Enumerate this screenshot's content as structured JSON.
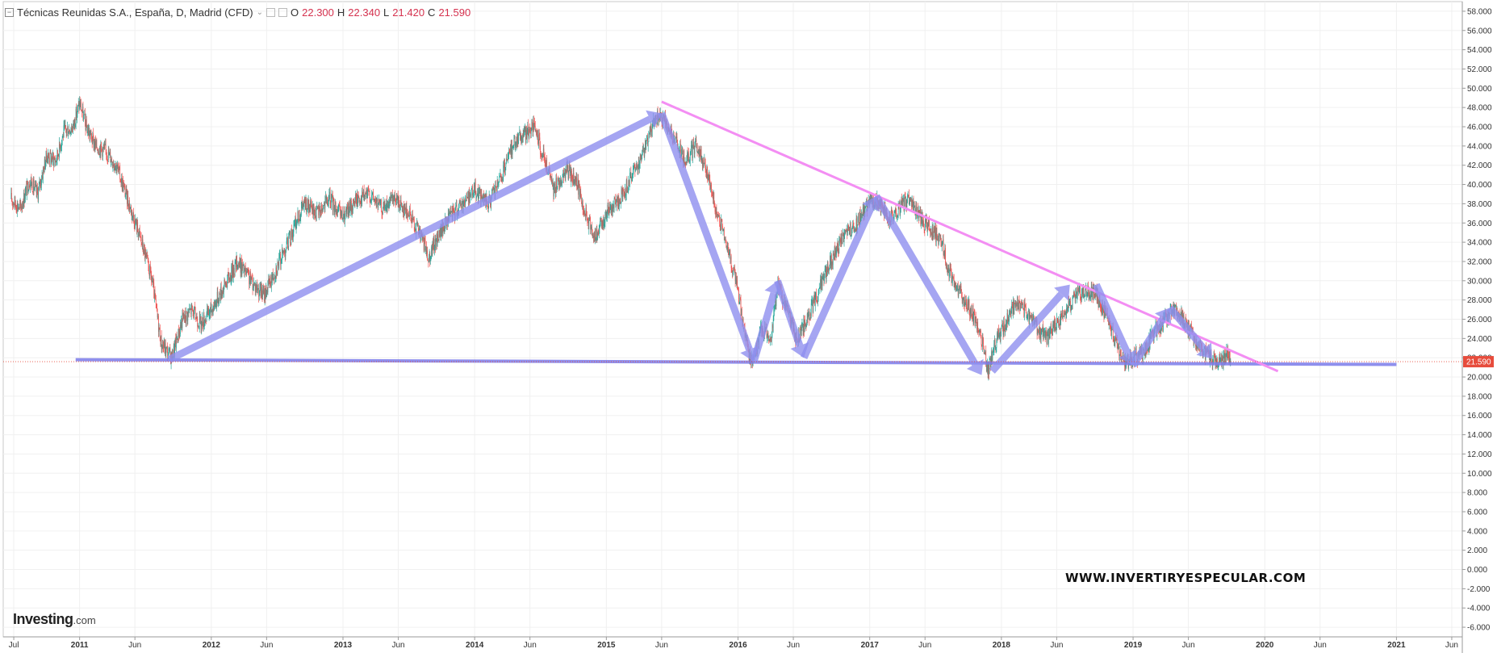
{
  "header": {
    "symbol_title": "Técnicas Reunidas S.A., España, D, Madrid (CFD)",
    "open_label": "O",
    "open_value": "22.300",
    "high_label": "H",
    "high_value": "22.340",
    "low_label": "L",
    "low_value": "21.420",
    "close_label": "C",
    "close_value": "21.590"
  },
  "watermark": "WWW.INVERTIRYESPECULAR.COM",
  "brand": {
    "name": "Investing",
    "suffix": ".com"
  },
  "colors": {
    "up": "#26a69a",
    "down": "#ef5350",
    "arrow": "#8f8fef",
    "resistance": "#f38ef3",
    "support": "#7b7bea",
    "price_tag": "#e74c3c"
  },
  "chart_data": {
    "type": "candlestick",
    "title": "Técnicas Reunidas S.A., España, D, Madrid (CFD)",
    "x_range": [
      2010.42,
      2021.5
    ],
    "y_range": [
      -7.0,
      59.0
    ],
    "y_ticks": [
      "58.000",
      "56.000",
      "54.000",
      "52.000",
      "50.000",
      "48.000",
      "46.000",
      "44.000",
      "42.000",
      "40.000",
      "38.000",
      "36.000",
      "34.000",
      "32.000",
      "30.000",
      "28.000",
      "26.000",
      "24.000",
      "22.000",
      "20.000",
      "18.000",
      "16.000",
      "14.000",
      "12.000",
      "10.000",
      "8.000",
      "6.000",
      "4.000",
      "2.000",
      "0.000",
      "-2.000",
      "-4.000",
      "-6.000"
    ],
    "x_ticks": [
      {
        "label": "Jul",
        "t": 2010.5
      },
      {
        "label": "2011",
        "t": 2011.0
      },
      {
        "label": "Jun",
        "t": 2011.42
      },
      {
        "label": "2012",
        "t": 2012.0
      },
      {
        "label": "Jun",
        "t": 2012.42
      },
      {
        "label": "2013",
        "t": 2013.0
      },
      {
        "label": "Jun",
        "t": 2013.42
      },
      {
        "label": "2014",
        "t": 2014.0
      },
      {
        "label": "Jun",
        "t": 2014.42
      },
      {
        "label": "2015",
        "t": 2015.0
      },
      {
        "label": "Jun",
        "t": 2015.42
      },
      {
        "label": "2016",
        "t": 2016.0
      },
      {
        "label": "Jun",
        "t": 2016.42
      },
      {
        "label": "2017",
        "t": 2017.0
      },
      {
        "label": "Jun",
        "t": 2017.42
      },
      {
        "label": "2018",
        "t": 2018.0
      },
      {
        "label": "Jun",
        "t": 2018.42
      },
      {
        "label": "2019",
        "t": 2019.0
      },
      {
        "label": "Jun",
        "t": 2019.42
      },
      {
        "label": "2020",
        "t": 2020.0
      },
      {
        "label": "Jun",
        "t": 2020.42
      },
      {
        "label": "2021",
        "t": 2021.0
      },
      {
        "label": "Jun",
        "t": 2021.42
      }
    ],
    "price_path": [
      [
        2010.48,
        38.5
      ],
      [
        2010.55,
        37.5
      ],
      [
        2010.62,
        40.5
      ],
      [
        2010.68,
        39.0
      ],
      [
        2010.75,
        43.0
      ],
      [
        2010.82,
        42.5
      ],
      [
        2010.88,
        45.5
      ],
      [
        2010.95,
        46.0
      ],
      [
        2011.0,
        48.5
      ],
      [
        2011.05,
        46.0
      ],
      [
        2011.12,
        44.0
      ],
      [
        2011.2,
        43.5
      ],
      [
        2011.28,
        42.0
      ],
      [
        2011.35,
        39.0
      ],
      [
        2011.45,
        35.0
      ],
      [
        2011.55,
        30.0
      ],
      [
        2011.62,
        23.5
      ],
      [
        2011.7,
        22.0
      ],
      [
        2011.78,
        26.0
      ],
      [
        2011.85,
        27.0
      ],
      [
        2011.92,
        25.5
      ],
      [
        2012.0,
        27.0
      ],
      [
        2012.1,
        29.5
      ],
      [
        2012.2,
        32.0
      ],
      [
        2012.3,
        30.0
      ],
      [
        2012.4,
        28.5
      ],
      [
        2012.5,
        31.5
      ],
      [
        2012.6,
        34.5
      ],
      [
        2012.7,
        38.0
      ],
      [
        2012.8,
        37.0
      ],
      [
        2012.9,
        38.5
      ],
      [
        2013.0,
        36.5
      ],
      [
        2013.1,
        38.5
      ],
      [
        2013.2,
        39.0
      ],
      [
        2013.3,
        37.5
      ],
      [
        2013.4,
        38.5
      ],
      [
        2013.5,
        37.0
      ],
      [
        2013.58,
        35.0
      ],
      [
        2013.65,
        32.5
      ],
      [
        2013.72,
        34.5
      ],
      [
        2013.8,
        36.5
      ],
      [
        2013.9,
        38.0
      ],
      [
        2014.0,
        39.5
      ],
      [
        2014.1,
        38.0
      ],
      [
        2014.2,
        40.5
      ],
      [
        2014.3,
        44.5
      ],
      [
        2014.4,
        45.5
      ],
      [
        2014.45,
        46.0
      ],
      [
        2014.52,
        43.0
      ],
      [
        2014.6,
        39.5
      ],
      [
        2014.7,
        41.5
      ],
      [
        2014.78,
        40.0
      ],
      [
        2014.85,
        36.5
      ],
      [
        2014.92,
        34.5
      ],
      [
        2015.0,
        37.0
      ],
      [
        2015.1,
        38.5
      ],
      [
        2015.2,
        41.0
      ],
      [
        2015.3,
        44.0
      ],
      [
        2015.38,
        47.0
      ],
      [
        2015.45,
        46.5
      ],
      [
        2015.52,
        44.5
      ],
      [
        2015.6,
        42.5
      ],
      [
        2015.68,
        44.0
      ],
      [
        2015.75,
        42.0
      ],
      [
        2015.82,
        38.0
      ],
      [
        2015.9,
        34.5
      ],
      [
        2016.0,
        29.0
      ],
      [
        2016.05,
        24.5
      ],
      [
        2016.1,
        21.5
      ],
      [
        2016.18,
        25.0
      ],
      [
        2016.25,
        24.0
      ],
      [
        2016.3,
        29.5
      ],
      [
        2016.38,
        27.0
      ],
      [
        2016.45,
        23.5
      ],
      [
        2016.52,
        26.0
      ],
      [
        2016.6,
        28.5
      ],
      [
        2016.7,
        32.0
      ],
      [
        2016.8,
        34.5
      ],
      [
        2016.9,
        36.0
      ],
      [
        2017.0,
        38.5
      ],
      [
        2017.08,
        38.0
      ],
      [
        2017.15,
        36.5
      ],
      [
        2017.22,
        37.5
      ],
      [
        2017.3,
        38.5
      ],
      [
        2017.38,
        36.5
      ],
      [
        2017.46,
        35.5
      ],
      [
        2017.55,
        34.0
      ],
      [
        2017.6,
        31.0
      ],
      [
        2017.7,
        28.5
      ],
      [
        2017.78,
        26.5
      ],
      [
        2017.85,
        24.0
      ],
      [
        2017.9,
        20.5
      ],
      [
        2017.95,
        23.5
      ],
      [
        2018.05,
        26.0
      ],
      [
        2018.12,
        28.0
      ],
      [
        2018.2,
        26.5
      ],
      [
        2018.28,
        25.0
      ],
      [
        2018.35,
        24.0
      ],
      [
        2018.42,
        25.5
      ],
      [
        2018.5,
        27.0
      ],
      [
        2018.58,
        28.5
      ],
      [
        2018.65,
        29.0
      ],
      [
        2018.72,
        28.5
      ],
      [
        2018.8,
        26.0
      ],
      [
        2018.87,
        23.5
      ],
      [
        2018.93,
        21.5
      ],
      [
        2019.0,
        22.0
      ],
      [
        2019.08,
        22.5
      ],
      [
        2019.15,
        24.5
      ],
      [
        2019.22,
        25.5
      ],
      [
        2019.3,
        27.0
      ],
      [
        2019.38,
        26.0
      ],
      [
        2019.45,
        24.5
      ],
      [
        2019.52,
        23.0
      ],
      [
        2019.58,
        22.0
      ],
      [
        2019.65,
        21.5
      ],
      [
        2019.72,
        22.3
      ],
      [
        2019.74,
        21.6
      ]
    ],
    "drawings": {
      "support_line": [
        [
          2010.97,
          21.8
        ],
        [
          2021.0,
          21.3
        ]
      ],
      "resistance_line": [
        [
          2015.42,
          48.6
        ],
        [
          2020.1,
          20.6
        ]
      ],
      "arrows": [
        [
          [
            2011.68,
            21.8
          ],
          [
            2015.42,
            47.4
          ]
        ],
        [
          [
            2015.42,
            47.4
          ],
          [
            2016.12,
            21.6
          ]
        ],
        [
          [
            2016.12,
            21.6
          ],
          [
            2016.3,
            30.0
          ]
        ],
        [
          [
            2016.3,
            30.0
          ],
          [
            2016.5,
            22.0
          ]
        ],
        [
          [
            2016.5,
            22.0
          ],
          [
            2017.05,
            38.8
          ]
        ],
        [
          [
            2017.05,
            38.8
          ],
          [
            2017.85,
            20.2
          ]
        ],
        [
          [
            2017.93,
            20.6
          ],
          [
            2018.52,
            29.6
          ]
        ],
        [
          [
            2018.72,
            29.6
          ],
          [
            2019.0,
            21.2
          ]
        ],
        [
          [
            2019.0,
            21.2
          ],
          [
            2019.28,
            27.2
          ]
        ],
        [
          [
            2019.28,
            27.2
          ],
          [
            2019.6,
            21.9
          ]
        ]
      ]
    },
    "last_price": 21.59,
    "last_price_label": "21.590",
    "legend": "top-left",
    "grid": true
  }
}
